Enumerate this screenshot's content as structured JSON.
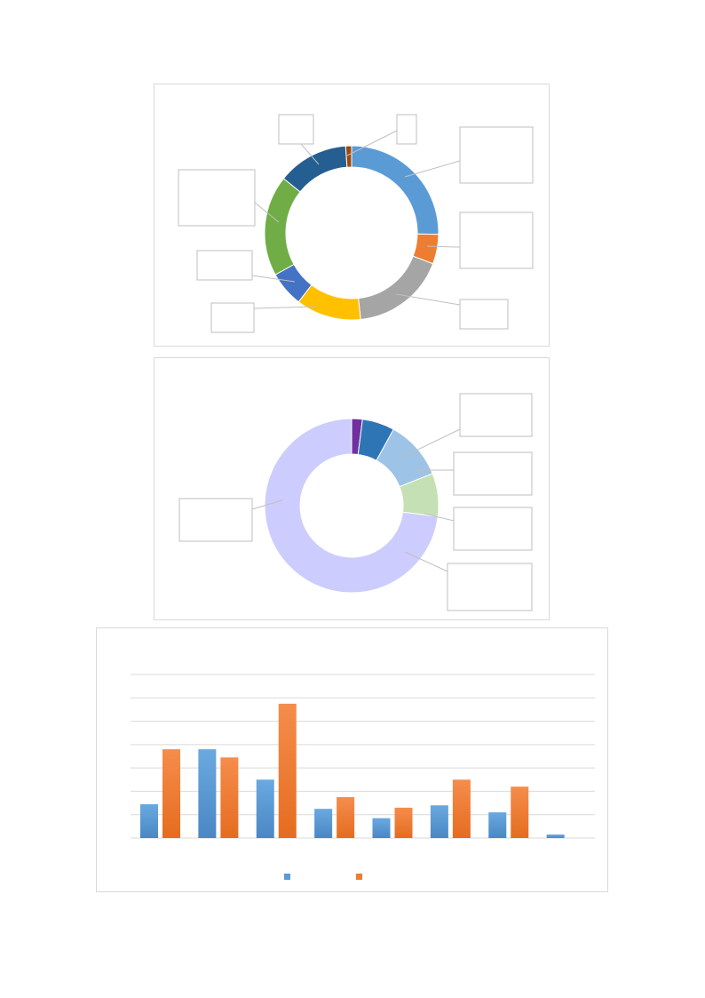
{
  "chart_data": [
    {
      "type": "pie",
      "donut": true,
      "labels_shown": false,
      "values": [
        23,
        5,
        16,
        11,
        6,
        17,
        12,
        1
      ],
      "colors": [
        "#5b9bd5",
        "#ed7d31",
        "#a5a5a5",
        "#ffc000",
        "#4472c4",
        "#70ad47",
        "#255e91",
        "#9e480e"
      ],
      "grid": false
    },
    {
      "type": "pie",
      "donut": true,
      "labels_shown": false,
      "values": [
        2,
        6,
        11,
        8,
        73
      ],
      "colors": [
        "#7030a0",
        "#2e75b6",
        "#9dc3e6",
        "#c5e0b4",
        "#ccccff"
      ],
      "grid": false
    },
    {
      "type": "bar",
      "categories": [
        "",
        "",
        "",
        "",
        "",
        "",
        "",
        ""
      ],
      "series": [
        {
          "values": [
            29,
            76,
            50,
            25,
            17,
            28,
            22,
            3
          ]
        },
        {
          "values": [
            76,
            69,
            115,
            35,
            26,
            50,
            44,
            0
          ]
        }
      ],
      "colors": [
        "#5b9bd5",
        "#ed7d31"
      ],
      "ylim": [
        0,
        140
      ],
      "grid": true,
      "legend_position": "bottom"
    }
  ]
}
